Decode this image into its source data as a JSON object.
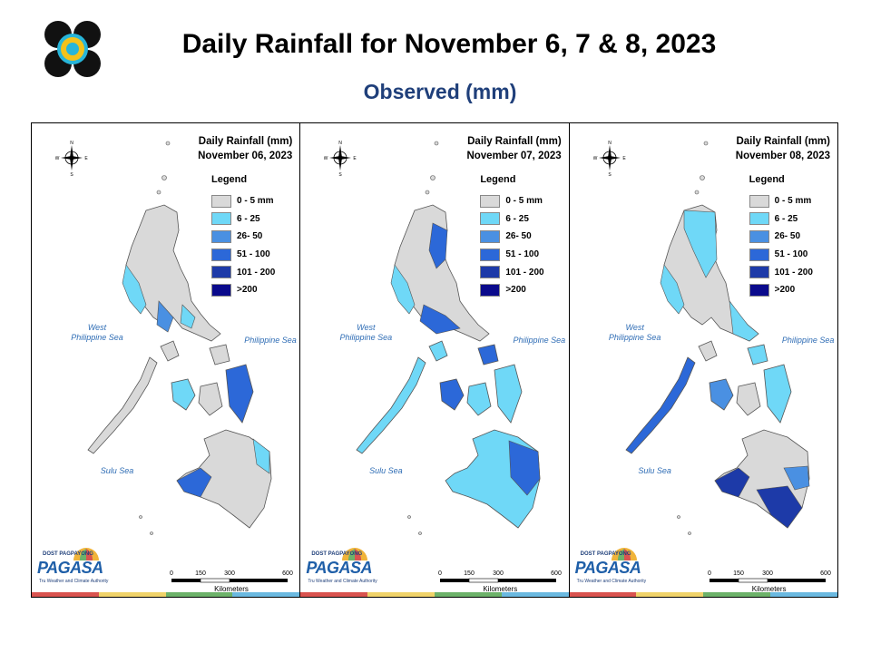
{
  "header": {
    "title": "Daily Rainfall for November 6, 7 & 8, 2023",
    "subtitle": "Observed (mm)"
  },
  "legend": {
    "title": "Legend",
    "items": [
      {
        "label": "0 - 5 mm",
        "color": "#d9d9d9"
      },
      {
        "label": "6 - 25",
        "color": "#6fd8f7"
      },
      {
        "label": "26- 50",
        "color": "#4a90e2"
      },
      {
        "label": "51 - 100",
        "color": "#2c68d8"
      },
      {
        "label": "101 - 200",
        "color": "#1d3aa8"
      },
      {
        "label": ">200",
        "color": "#0a0a8c"
      }
    ]
  },
  "panels": [
    {
      "title": "Daily Rainfall (mm)",
      "date": "November 06, 2023"
    },
    {
      "title": "Daily Rainfall (mm)",
      "date": "November 07, 2023"
    },
    {
      "title": "Daily Rainfall (mm)",
      "date": "November 08, 2023"
    }
  ],
  "seas": {
    "west": "West\nPhilippine Sea",
    "east": "Philippine Sea",
    "sulu": "Sulu Sea"
  },
  "compass": {
    "n": "N",
    "s": "S",
    "e": "E",
    "w": "W"
  },
  "scale": {
    "ticks": [
      "0",
      "150",
      "300",
      "600"
    ],
    "unit": "Kilometers"
  },
  "branding": {
    "agency_top": "DOST  PAGPAYONG",
    "agency": "PAGASA",
    "tagline": "Tru Weather and Climate Authority"
  },
  "stripe_colors": [
    "#d9534f",
    "#f0d36a",
    "#6db26a",
    "#6bb9e0"
  ]
}
